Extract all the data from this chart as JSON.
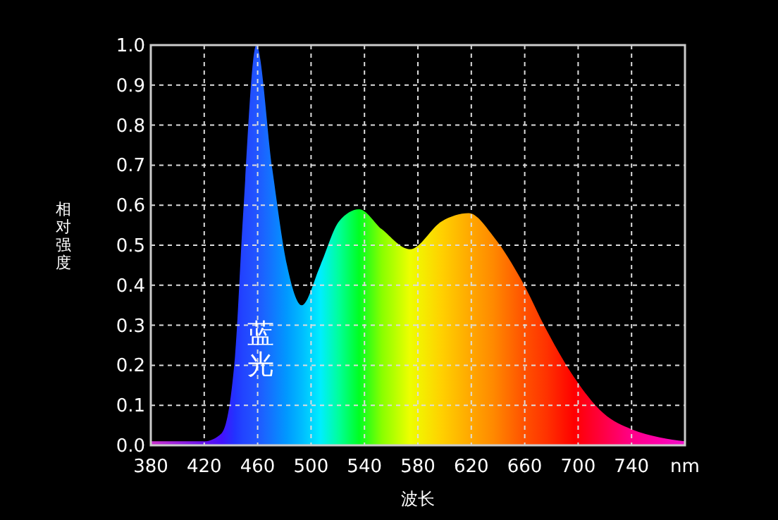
{
  "chart_data": {
    "type": "area",
    "xlabel": "波长",
    "ylabel": "相对强度",
    "x": [
      380,
      400,
      420,
      433,
      443,
      449,
      459,
      471,
      482,
      493,
      507,
      521,
      536,
      553,
      574,
      598,
      618,
      637,
      658,
      676,
      697,
      719,
      740,
      761,
      780
    ],
    "series": [
      {
        "values": [
          0.01,
          0.01,
          0.01,
          0.03,
          0.22,
          0.57,
          1.0,
          0.69,
          0.45,
          0.35,
          0.45,
          0.56,
          0.59,
          0.54,
          0.49,
          0.56,
          0.58,
          0.52,
          0.41,
          0.29,
          0.17,
          0.08,
          0.04,
          0.02,
          0.01
        ],
        "colors": [
          "#cc33cc",
          "#9922dd",
          "#6611ee",
          "#4411ff",
          "#2233ff",
          "#2244ff",
          "#2255ff",
          "#1177ff",
          "#0099ff",
          "#00bbff",
          "#00eeff",
          "#00ff99",
          "#00ff22",
          "#88ff00",
          "#eeff00",
          "#ffd000",
          "#ffaa00",
          "#ff8800",
          "#ff5500",
          "#ff3300",
          "#ff0000",
          "#ff0044",
          "#ff0088",
          "#ff00aa",
          "#ee11cc"
        ]
      }
    ],
    "xlim": [
      380,
      780
    ],
    "xticks": [
      380,
      420,
      460,
      500,
      540,
      580,
      620,
      660,
      700,
      740,
      {
        "value": 780,
        "label": "nm"
      }
    ],
    "ylim": [
      0,
      1
    ],
    "yticks": [
      {
        "value": 0,
        "label": "0.0"
      },
      0.1,
      0.2,
      0.3,
      0.4,
      0.5,
      0.6,
      0.7,
      0.8,
      0.9,
      {
        "value": 1,
        "label": "1.0"
      }
    ],
    "grid": true,
    "annotations": [
      "蓝光"
    ]
  }
}
